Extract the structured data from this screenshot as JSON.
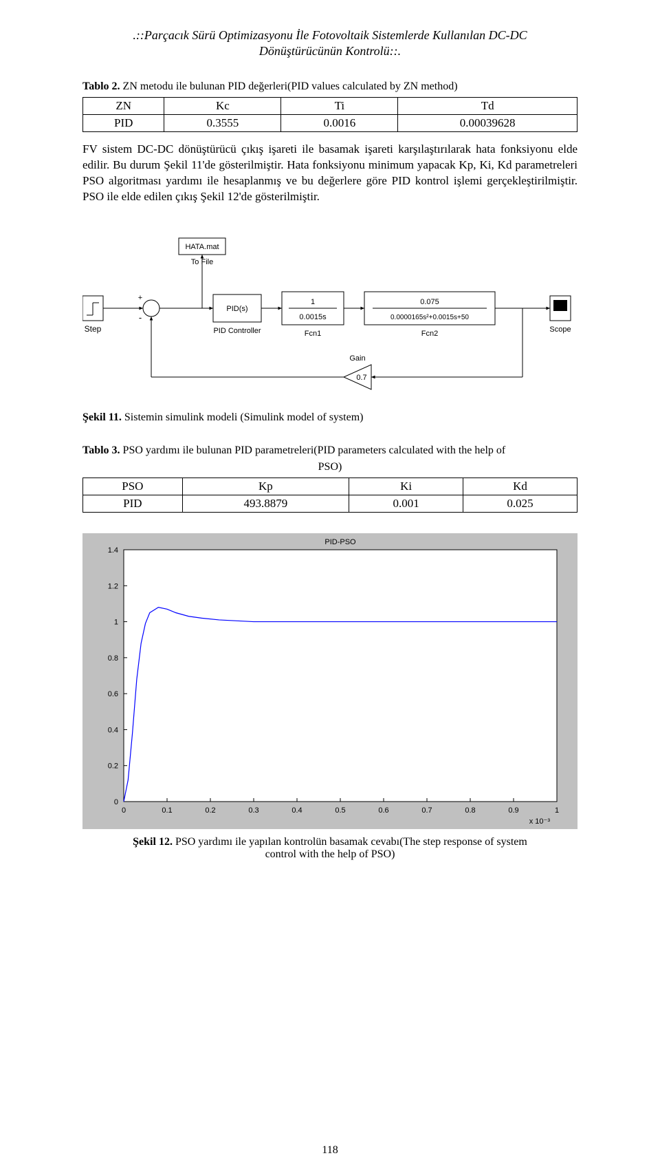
{
  "header": {
    "line1": ".::Parçacık Sürü Optimizasyonu İle Fotovoltaik Sistemlerde Kullanılan DC-DC",
    "line2": "Dönüştürücünün Kontrolü::."
  },
  "table2": {
    "caption_bold": "Tablo 2.",
    "caption_rest": " ZN metodu ile bulunan PID değerleri(PID values calculated by ZN method)",
    "headers": [
      "ZN",
      "Kc",
      "Ti",
      "Td"
    ],
    "row": [
      "PID",
      "0.3555",
      "0.0016",
      "0.00039628"
    ]
  },
  "para1": "FV sistem DC-DC dönüştürücü çıkış işareti ile basamak işareti karşılaştırılarak hata fonksiyonu elde edilir. Bu durum Şekil 11'de gösterilmiştir. Hata fonksiyonu minimum yapacak Kp, Ki, Kd parametreleri PSO algoritması yardımı ile hesaplanmış ve bu değerlere göre PID kontrol işlemi gerçekleştirilmiştir. PSO ile elde edilen çıkış Şekil 12'de gösterilmiştir.",
  "simulink": {
    "blocks": {
      "step": "Step",
      "hata_file": "HATA.mat",
      "to_file": "To File",
      "pid_inner": "PID(s)",
      "pid_label": "PID Controller",
      "fcn1_num": "1",
      "fcn1_den": "0.0015s",
      "fcn1_label": "Fcn1",
      "fcn2_num": "0.075",
      "fcn2_den": "0.0000165s²+0.0015s+50",
      "fcn2_label": "Fcn2",
      "scope": "Scope",
      "gain_label": "Gain",
      "gain_value": "0.7"
    },
    "colors": {
      "block_stroke": "#000000",
      "block_fill": "#ffffff",
      "wire": "#000000",
      "text": "#000000"
    },
    "font_size": 12
  },
  "fig11": {
    "bold": "Şekil 11.",
    "rest": "  Sistemin simulink modeli (Simulink model of system)"
  },
  "table3": {
    "caption_bold": "Tablo 3.",
    "caption_rest": " PSO yardımı ile bulunan PID parametreleri(PID parameters calculated with the help of",
    "caption_line2": "PSO)",
    "headers": [
      "PSO",
      "Kp",
      "Ki",
      "Kd"
    ],
    "row": [
      "PID",
      "493.8879",
      "0.001",
      "0.025"
    ]
  },
  "chart": {
    "type": "line",
    "title": "PID-PSO",
    "title_fontsize": 11,
    "xlabel_suffix": "x 10⁻³",
    "xlim": [
      0,
      1.0
    ],
    "ylim": [
      0,
      1.4
    ],
    "xticks": [
      0,
      0.1,
      0.2,
      0.3,
      0.4,
      0.5,
      0.6,
      0.7,
      0.8,
      0.9,
      1
    ],
    "yticks": [
      0,
      0.2,
      0.4,
      0.6,
      0.8,
      1,
      1.2,
      1.4
    ],
    "tick_fontsize": 11,
    "background_color": "#c0c0c0",
    "plot_bg_color": "#ffffff",
    "grid_color": "#d0d0d0",
    "line_color": "#0000ff",
    "line_width": 1.2,
    "series": [
      [
        0.0,
        0.0
      ],
      [
        0.01,
        0.12
      ],
      [
        0.02,
        0.38
      ],
      [
        0.03,
        0.68
      ],
      [
        0.04,
        0.88
      ],
      [
        0.05,
        0.99
      ],
      [
        0.06,
        1.05
      ],
      [
        0.08,
        1.08
      ],
      [
        0.1,
        1.07
      ],
      [
        0.12,
        1.05
      ],
      [
        0.15,
        1.03
      ],
      [
        0.18,
        1.02
      ],
      [
        0.22,
        1.01
      ],
      [
        0.3,
        1.0
      ],
      [
        0.4,
        1.0
      ],
      [
        0.5,
        1.0
      ],
      [
        0.6,
        1.0
      ],
      [
        0.7,
        1.0
      ],
      [
        0.8,
        1.0
      ],
      [
        0.9,
        1.0
      ],
      [
        1.0,
        1.0
      ]
    ]
  },
  "fig12": {
    "bold": "Şekil 12.",
    "rest": " PSO yardımı ile yapılan kontrolün basamak cevabı(The step response of system",
    "line2": "control with the help of PSO)"
  },
  "page_number": "118"
}
